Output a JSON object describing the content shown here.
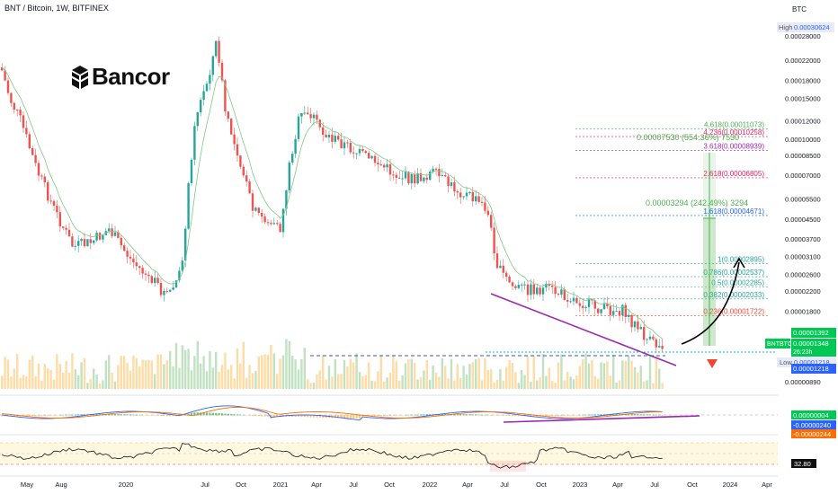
{
  "header": {
    "title": "BNT / Bitcoin, 1W, BITFINEX",
    "currency": "BTC"
  },
  "logo": {
    "text": "Bancor"
  },
  "colors": {
    "up": "#26a69a",
    "down": "#ef5350",
    "purple": "#9c27b0",
    "green": "#4caf50",
    "blue": "#2962ff"
  },
  "chart_data": {
    "type": "line",
    "symbol": "BNTBTC",
    "price_axis": {
      "scale": "log",
      "labels": [
        "0.00028000",
        "0.00022000",
        "0.00018000",
        "0.00015000",
        "0.00012000",
        "0.00010000",
        "0.00008500",
        "0.00007000",
        "0.00005500",
        "0.00004500",
        "0.00003700",
        "0.00003100",
        "0.00002600",
        "0.00002200",
        "0.00001800",
        "0.00000890"
      ]
    },
    "price_tags": {
      "high_label": "High",
      "high": "0.00030624",
      "current_upper": "0.00001392",
      "symbol": "BNTBTC",
      "last": "0.00001348",
      "countdown": "26:23h",
      "low_label": "Low",
      "low_a": "0.00001218",
      "low_b": "0.00001218"
    },
    "time_axis": [
      "May",
      "Aug",
      "2020",
      "Jul",
      "Oct",
      "2021",
      "Apr",
      "Jul",
      "Oct",
      "2022",
      "Apr",
      "Jul",
      "Oct",
      "2023",
      "Apr",
      "Jul",
      "Oct",
      "2024",
      "Apr"
    ],
    "fib_levels": [
      {
        "ratio": "4.618",
        "price": "0.00011073",
        "color": "#4caf50"
      },
      {
        "ratio": "4.236",
        "price": "0.00010258",
        "color": "#e91e63"
      },
      {
        "ratio": "3.618",
        "price": "0.00008939",
        "color": "#9c27b0"
      },
      {
        "ratio": "2.618",
        "price": "0.00006805",
        "color": "#e91e63"
      },
      {
        "ratio": "1.618",
        "price": "0.00004671",
        "color": "#2962ff"
      },
      {
        "ratio": "1",
        "price": "0.00002895",
        "color": "#26a69a"
      },
      {
        "ratio": "0.786",
        "price": "0.00002537",
        "color": "#26a69a"
      },
      {
        "ratio": "0.5",
        "price": "0.00002285",
        "color": "#26a69a"
      },
      {
        "ratio": "0.382",
        "price": "0.00002033",
        "color": "#26a69a"
      },
      {
        "ratio": "0.236",
        "price": "0.00001722",
        "color": "#f44336"
      }
    ],
    "targets": [
      {
        "text": "0.00007530 (554.36%) 7530"
      },
      {
        "text": "0.00003294 (242.49%) 3294"
      }
    ],
    "macd": {
      "labels": [
        "0.00000004",
        "-0.00000240",
        "-0.00000244"
      ]
    },
    "rsi": {
      "value": "32.80"
    }
  }
}
